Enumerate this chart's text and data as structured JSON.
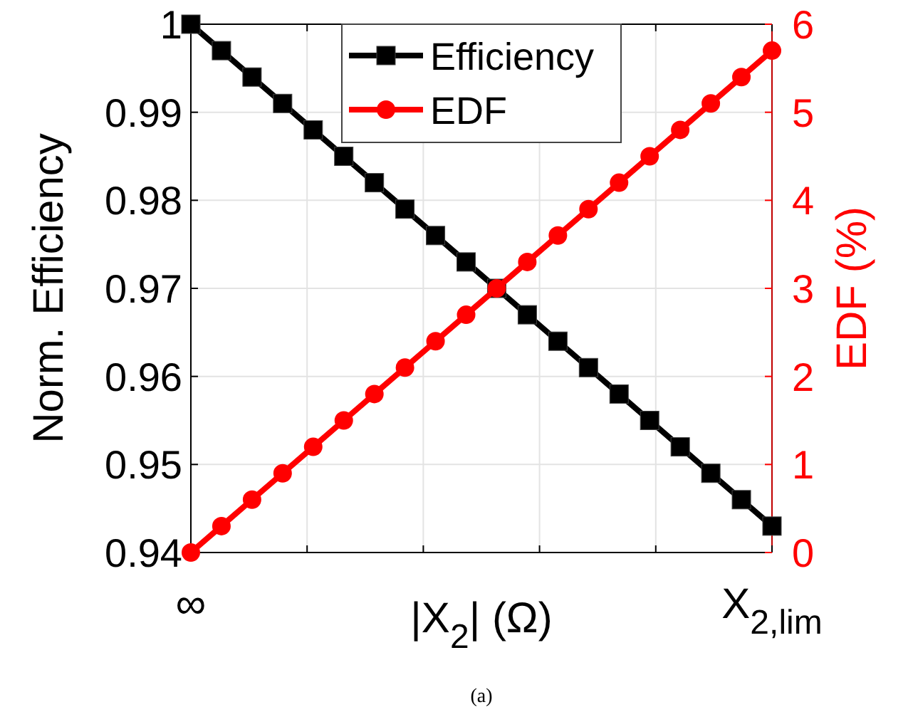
{
  "chart_data": {
    "type": "line",
    "categories": [
      "∞",
      null,
      null,
      null,
      null,
      null,
      null,
      null,
      null,
      null,
      null,
      null,
      null,
      null,
      null,
      null,
      null,
      null,
      null,
      "X$_{2,lim}$"
    ],
    "xlabel": "|X$_{2}$| (Ω)",
    "ylabel": "Norm. Efficiency",
    "y2label": "EDF (%)",
    "series": [
      {
        "name": "Efficiency",
        "color": "#000000",
        "marker": "square",
        "values": [
          1,
          0.997,
          0.994,
          0.991,
          0.988,
          0.985,
          0.982,
          0.979,
          0.976,
          0.973,
          0.97,
          0.967,
          0.964,
          0.961,
          0.958,
          0.955,
          0.952,
          0.949,
          0.946,
          0.943
        ]
      },
      {
        "name": "EDF",
        "color": "#ff0000",
        "marker": "circle",
        "axis": "y2",
        "values": [
          0,
          0.3,
          0.6,
          0.9,
          1.2,
          1.5,
          1.8,
          2.1,
          2.4,
          2.7,
          3.0,
          3.3,
          3.6,
          3.9,
          4.2,
          4.5,
          4.8,
          5.1,
          5.4,
          5.7
        ]
      }
    ],
    "ylim": [
      0.94,
      1
    ],
    "yticks": [
      0.94,
      0.95,
      0.96,
      0.97,
      0.98,
      0.99,
      1
    ],
    "y2lim": [
      0,
      6
    ],
    "y2ticks": [
      0,
      1,
      2,
      3,
      4,
      5,
      6
    ],
    "grid": true,
    "legend": "top",
    "line_style": "solid",
    "annotations": [
      "(a)"
    ]
  }
}
